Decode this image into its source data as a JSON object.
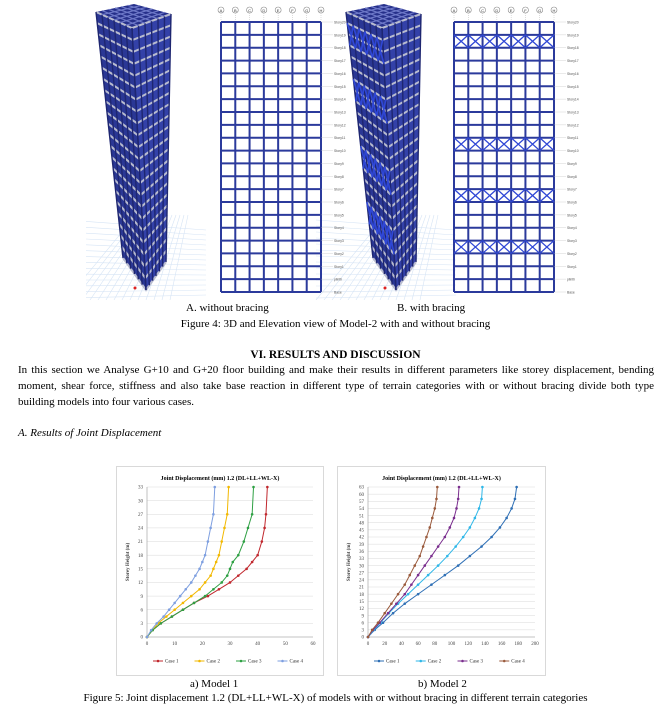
{
  "figure4": {
    "caption_a": "A. without bracing",
    "caption_b": "B. with bracing",
    "caption": "Figure 4: 3D and Elevation view of Model-2 with and without bracing",
    "story_labels": [
      "Story20",
      "Story19",
      "Story18",
      "Story17",
      "Story16",
      "Story15",
      "Story14",
      "Story13",
      "Story12",
      "Story11",
      "Story10",
      "Story9",
      "Story8",
      "Story7",
      "Story6",
      "Story5",
      "Story4",
      "Story3",
      "Story2",
      "Story1",
      "plinth",
      "Base"
    ],
    "grid_labels": [
      "A",
      "B",
      "C",
      "D",
      "E",
      "F",
      "G",
      "H"
    ],
    "colors": {
      "frame": "#2b3a9c",
      "bracing": "#2f47d6"
    }
  },
  "section": {
    "heading": "VI.        RESULTS AND DISCUSSION",
    "paragraph": "In this section we Analyse G+10 and G+20 floor building and make their results in different parameters like storey displacement, bending moment, shear force, stiffness and also take base reaction in different type of terrain categories with or without bracing divide both type building models into four various cases.",
    "subheading": "A.    Results of Joint Displacement"
  },
  "chart_data": [
    {
      "type": "line",
      "title": "Joint Displacement (mm) 1.2 (DL+LL+WL-X)",
      "xlabel": "",
      "ylabel": "Storey Height (m)",
      "xlim": [
        0,
        60
      ],
      "ylim": [
        0,
        33
      ],
      "xticks": [
        "0",
        "10",
        "20",
        "30",
        "40",
        "50",
        "60"
      ],
      "yticks": [
        "0",
        "3",
        "6",
        "9",
        "12",
        "15",
        "18",
        "21",
        "24",
        "27",
        "30",
        "33"
      ],
      "series": [
        {
          "name": "Case 1",
          "color": "#c0272d",
          "x": [
            0,
            2,
            5,
            9,
            13,
            17,
            22,
            26,
            30,
            33,
            36,
            38,
            40,
            41.5,
            42.5,
            43,
            43.5
          ],
          "y": [
            0,
            1.5,
            3,
            4.5,
            6,
            7.5,
            9,
            10.5,
            12,
            13.5,
            15,
            16.5,
            18,
            21,
            24,
            27,
            33
          ]
        },
        {
          "name": "Case 2",
          "color": "#f2b800",
          "x": [
            0,
            2,
            4,
            7,
            10,
            13,
            16,
            19,
            21,
            23,
            24,
            25,
            26,
            27,
            28,
            29,
            29.5
          ],
          "y": [
            0,
            1.5,
            3,
            4.5,
            6,
            7.5,
            9,
            10.5,
            12,
            13.5,
            15,
            16.5,
            18,
            21,
            24,
            27,
            33
          ]
        },
        {
          "name": "Case 3",
          "color": "#2ea043",
          "x": [
            0,
            2,
            5,
            9,
            13,
            17,
            21,
            24,
            27,
            29,
            30,
            31,
            33,
            35,
            36.5,
            38,
            38.5
          ],
          "y": [
            0,
            1.5,
            3,
            4.5,
            6,
            7.5,
            9,
            10.5,
            12,
            13.5,
            15,
            16.5,
            18,
            21,
            24,
            27,
            33
          ]
        },
        {
          "name": "Case 4",
          "color": "#7e9fe0",
          "x": [
            0,
            1.5,
            3.5,
            6,
            8,
            10,
            12,
            14,
            16,
            17.5,
            19,
            20,
            21,
            22,
            23,
            24,
            24.5
          ],
          "y": [
            0,
            1.5,
            3,
            4.5,
            6,
            7.5,
            9,
            10.5,
            12,
            13.5,
            15,
            16.5,
            18,
            21,
            24,
            27,
            33
          ]
        }
      ],
      "legend": "bottom",
      "caption": "a) Model 1"
    },
    {
      "type": "line",
      "title": "Joint Displacement (mm) 1.2 (DL+LL+WL-X)",
      "xlabel": "",
      "ylabel": "Storey Height (m)",
      "xlim": [
        0,
        200
      ],
      "ylim": [
        0,
        63
      ],
      "xticks": [
        "0",
        "20",
        "40",
        "60",
        "80",
        "100",
        "120",
        "140",
        "160",
        "180",
        "200"
      ],
      "yticks": [
        "0",
        "3",
        "6",
        "9",
        "12",
        "15",
        "18",
        "21",
        "24",
        "27",
        "30",
        "33",
        "36",
        "39",
        "42",
        "45",
        "48",
        "51",
        "54",
        "57",
        "60",
        "63"
      ],
      "series": [
        {
          "name": "Case 1",
          "color": "#2e6fb5",
          "x": [
            0,
            8,
            18,
            30,
            44,
            60,
            76,
            92,
            108,
            122,
            136,
            148,
            158,
            166,
            172,
            176,
            178
          ],
          "y": [
            0,
            3,
            6,
            10,
            14,
            18,
            22,
            26,
            30,
            34,
            38,
            42,
            46,
            50,
            54,
            58,
            63
          ]
        },
        {
          "name": "Case 2",
          "color": "#2fb7e8",
          "x": [
            0,
            7,
            15,
            25,
            36,
            48,
            60,
            72,
            84,
            95,
            105,
            114,
            122,
            128,
            133,
            136,
            137
          ],
          "y": [
            0,
            3,
            6,
            10,
            14,
            18,
            22,
            26,
            30,
            34,
            38,
            42,
            46,
            50,
            54,
            58,
            63
          ]
        },
        {
          "name": "Case 3",
          "color": "#7a2e8e",
          "x": [
            0,
            6,
            14,
            24,
            34,
            44,
            52,
            60,
            68,
            76,
            84,
            92,
            98,
            103,
            106,
            108,
            109
          ],
          "y": [
            0,
            3,
            6,
            10,
            14,
            18,
            22,
            26,
            30,
            34,
            38,
            42,
            46,
            50,
            54,
            58,
            63
          ]
        },
        {
          "name": "Case 4",
          "color": "#9a5a3c",
          "x": [
            0,
            5,
            12,
            20,
            28,
            36,
            44,
            50,
            56,
            62,
            66,
            70,
            74,
            77,
            80,
            82,
            83
          ],
          "y": [
            0,
            3,
            6,
            10,
            14,
            18,
            22,
            26,
            30,
            34,
            38,
            42,
            46,
            50,
            54,
            58,
            63
          ]
        }
      ],
      "legend": "bottom",
      "caption": "b) Model 2"
    }
  ],
  "figure5": {
    "caption": "Figure 5: Joint displacement 1.2 (DL+LL+WL-X) of models with or without bracing in different terrain categories"
  }
}
